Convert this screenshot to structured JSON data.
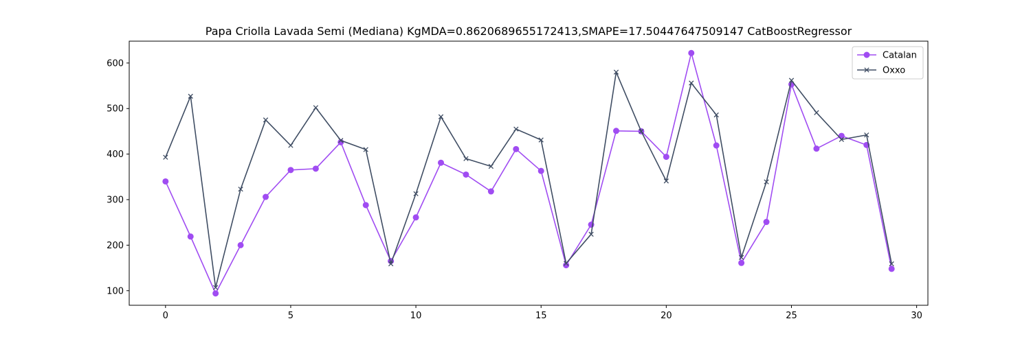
{
  "chart_data": {
    "type": "line",
    "title": "Papa Criolla Lavada Semi (Mediana) KgMDA=0.8620689655172413,SMAPE=17.50447647509147 CatBoostRegressor",
    "xlabel": "",
    "ylabel": "",
    "x": [
      0,
      1,
      2,
      3,
      4,
      5,
      6,
      7,
      8,
      9,
      10,
      11,
      12,
      13,
      14,
      15,
      16,
      17,
      18,
      19,
      20,
      21,
      22,
      23,
      24,
      25,
      26,
      27,
      28,
      29
    ],
    "xlim": [
      -1.45,
      30.45
    ],
    "ylim": [
      68,
      648
    ],
    "xticks": [
      0,
      5,
      10,
      15,
      20,
      25,
      30
    ],
    "yticks": [
      100,
      200,
      300,
      400,
      500,
      600
    ],
    "grid": false,
    "legend_position": "top-right",
    "series": [
      {
        "name": "Catalan",
        "color": "#a04cf2",
        "marker": "circle",
        "values": [
          340,
          219,
          94,
          200,
          306,
          365,
          368,
          426,
          288,
          165,
          261,
          381,
          355,
          318,
          411,
          363,
          156,
          245,
          451,
          450,
          394,
          622,
          419,
          161,
          251,
          553,
          412,
          440,
          420,
          148
        ]
      },
      {
        "name": "Oxxo",
        "color": "#3f4d63",
        "marker": "x",
        "values": [
          393,
          527,
          107,
          323,
          475,
          419,
          502,
          430,
          410,
          159,
          313,
          482,
          390,
          373,
          455,
          431,
          160,
          224,
          580,
          450,
          341,
          556,
          486,
          173,
          339,
          562,
          491,
          432,
          442,
          159
        ]
      }
    ]
  }
}
